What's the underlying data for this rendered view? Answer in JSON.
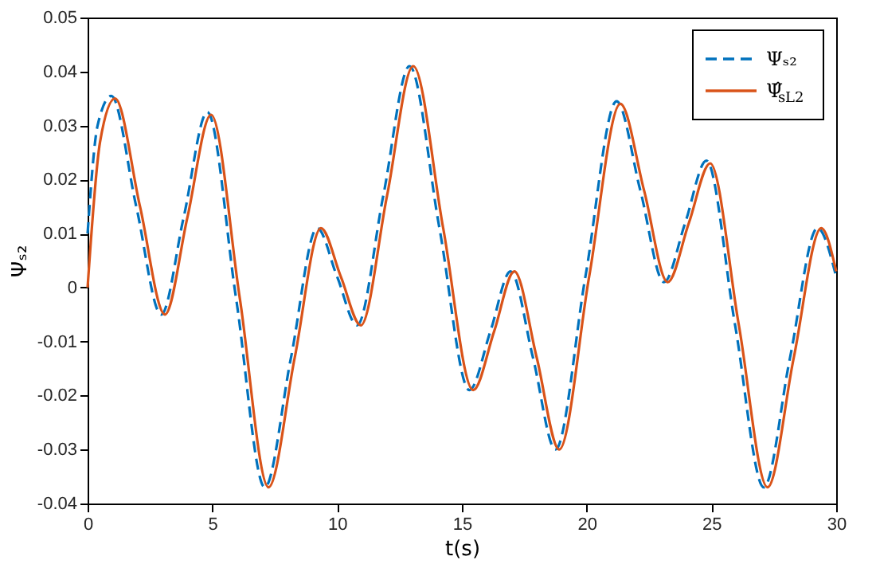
{
  "chart_data": {
    "type": "line",
    "xlabel": "t(s)",
    "ylabel": "Ψₛ₂",
    "xlim": [
      0,
      30
    ],
    "ylim": [
      -0.04,
      0.05
    ],
    "xticks": [
      0,
      5,
      10,
      15,
      20,
      25,
      30
    ],
    "yticks": [
      -0.04,
      -0.03,
      -0.02,
      -0.01,
      0,
      0.01,
      0.02,
      0.03,
      0.04,
      0.05
    ],
    "grid": false,
    "legend": "top right",
    "marker": "none",
    "series": [
      {
        "name": "Ψₛ₂",
        "color": "#0072bd",
        "line_style": "dashed",
        "x": [
          0,
          0.4,
          0.95,
          1.95,
          2.95,
          3.85,
          4.8,
          5.95,
          7.1,
          8.15,
          9.2,
          10.0,
          10.8,
          11.85,
          12.9,
          14.1,
          15.3,
          16.15,
          16.95,
          17.85,
          18.75,
          19.95,
          21.2,
          22.15,
          23.1,
          23.95,
          24.8,
          25.95,
          27.1,
          28.15,
          29.25,
          30
        ],
        "values": [
          0.01,
          0.03,
          0.0355,
          0.015,
          -0.005,
          0.013,
          0.0325,
          -0.002,
          -0.037,
          -0.013,
          0.011,
          0.002,
          -0.007,
          0.017,
          0.041,
          0.011,
          -0.019,
          -0.008,
          0.003,
          -0.013,
          -0.03,
          0.002,
          0.0345,
          0.018,
          0.001,
          0.012,
          0.0235,
          -0.007,
          -0.037,
          -0.013,
          0.011,
          0.002
        ]
      },
      {
        "name": "Ψ̂$_{sL2}$",
        "color": "#d95319",
        "line_style": "solid",
        "x": [
          0,
          0.5,
          1.1,
          2.1,
          3.1,
          4.0,
          4.95,
          6.1,
          7.25,
          8.3,
          9.35,
          10.15,
          10.95,
          12.0,
          13.05,
          14.25,
          15.45,
          16.3,
          17.1,
          18.0,
          18.9,
          20.1,
          21.35,
          22.3,
          23.25,
          24.1,
          24.95,
          26.1,
          27.25,
          28.3,
          29.4,
          30
        ],
        "values": [
          0,
          0.027,
          0.035,
          0.015,
          -0.005,
          0.013,
          0.032,
          -0.002,
          -0.037,
          -0.013,
          0.011,
          0.002,
          -0.007,
          0.017,
          0.041,
          0.011,
          -0.019,
          -0.008,
          0.003,
          -0.013,
          -0.03,
          0.002,
          0.034,
          0.018,
          0.001,
          0.012,
          0.023,
          -0.007,
          -0.037,
          -0.013,
          0.011,
          0.003
        ]
      }
    ]
  }
}
